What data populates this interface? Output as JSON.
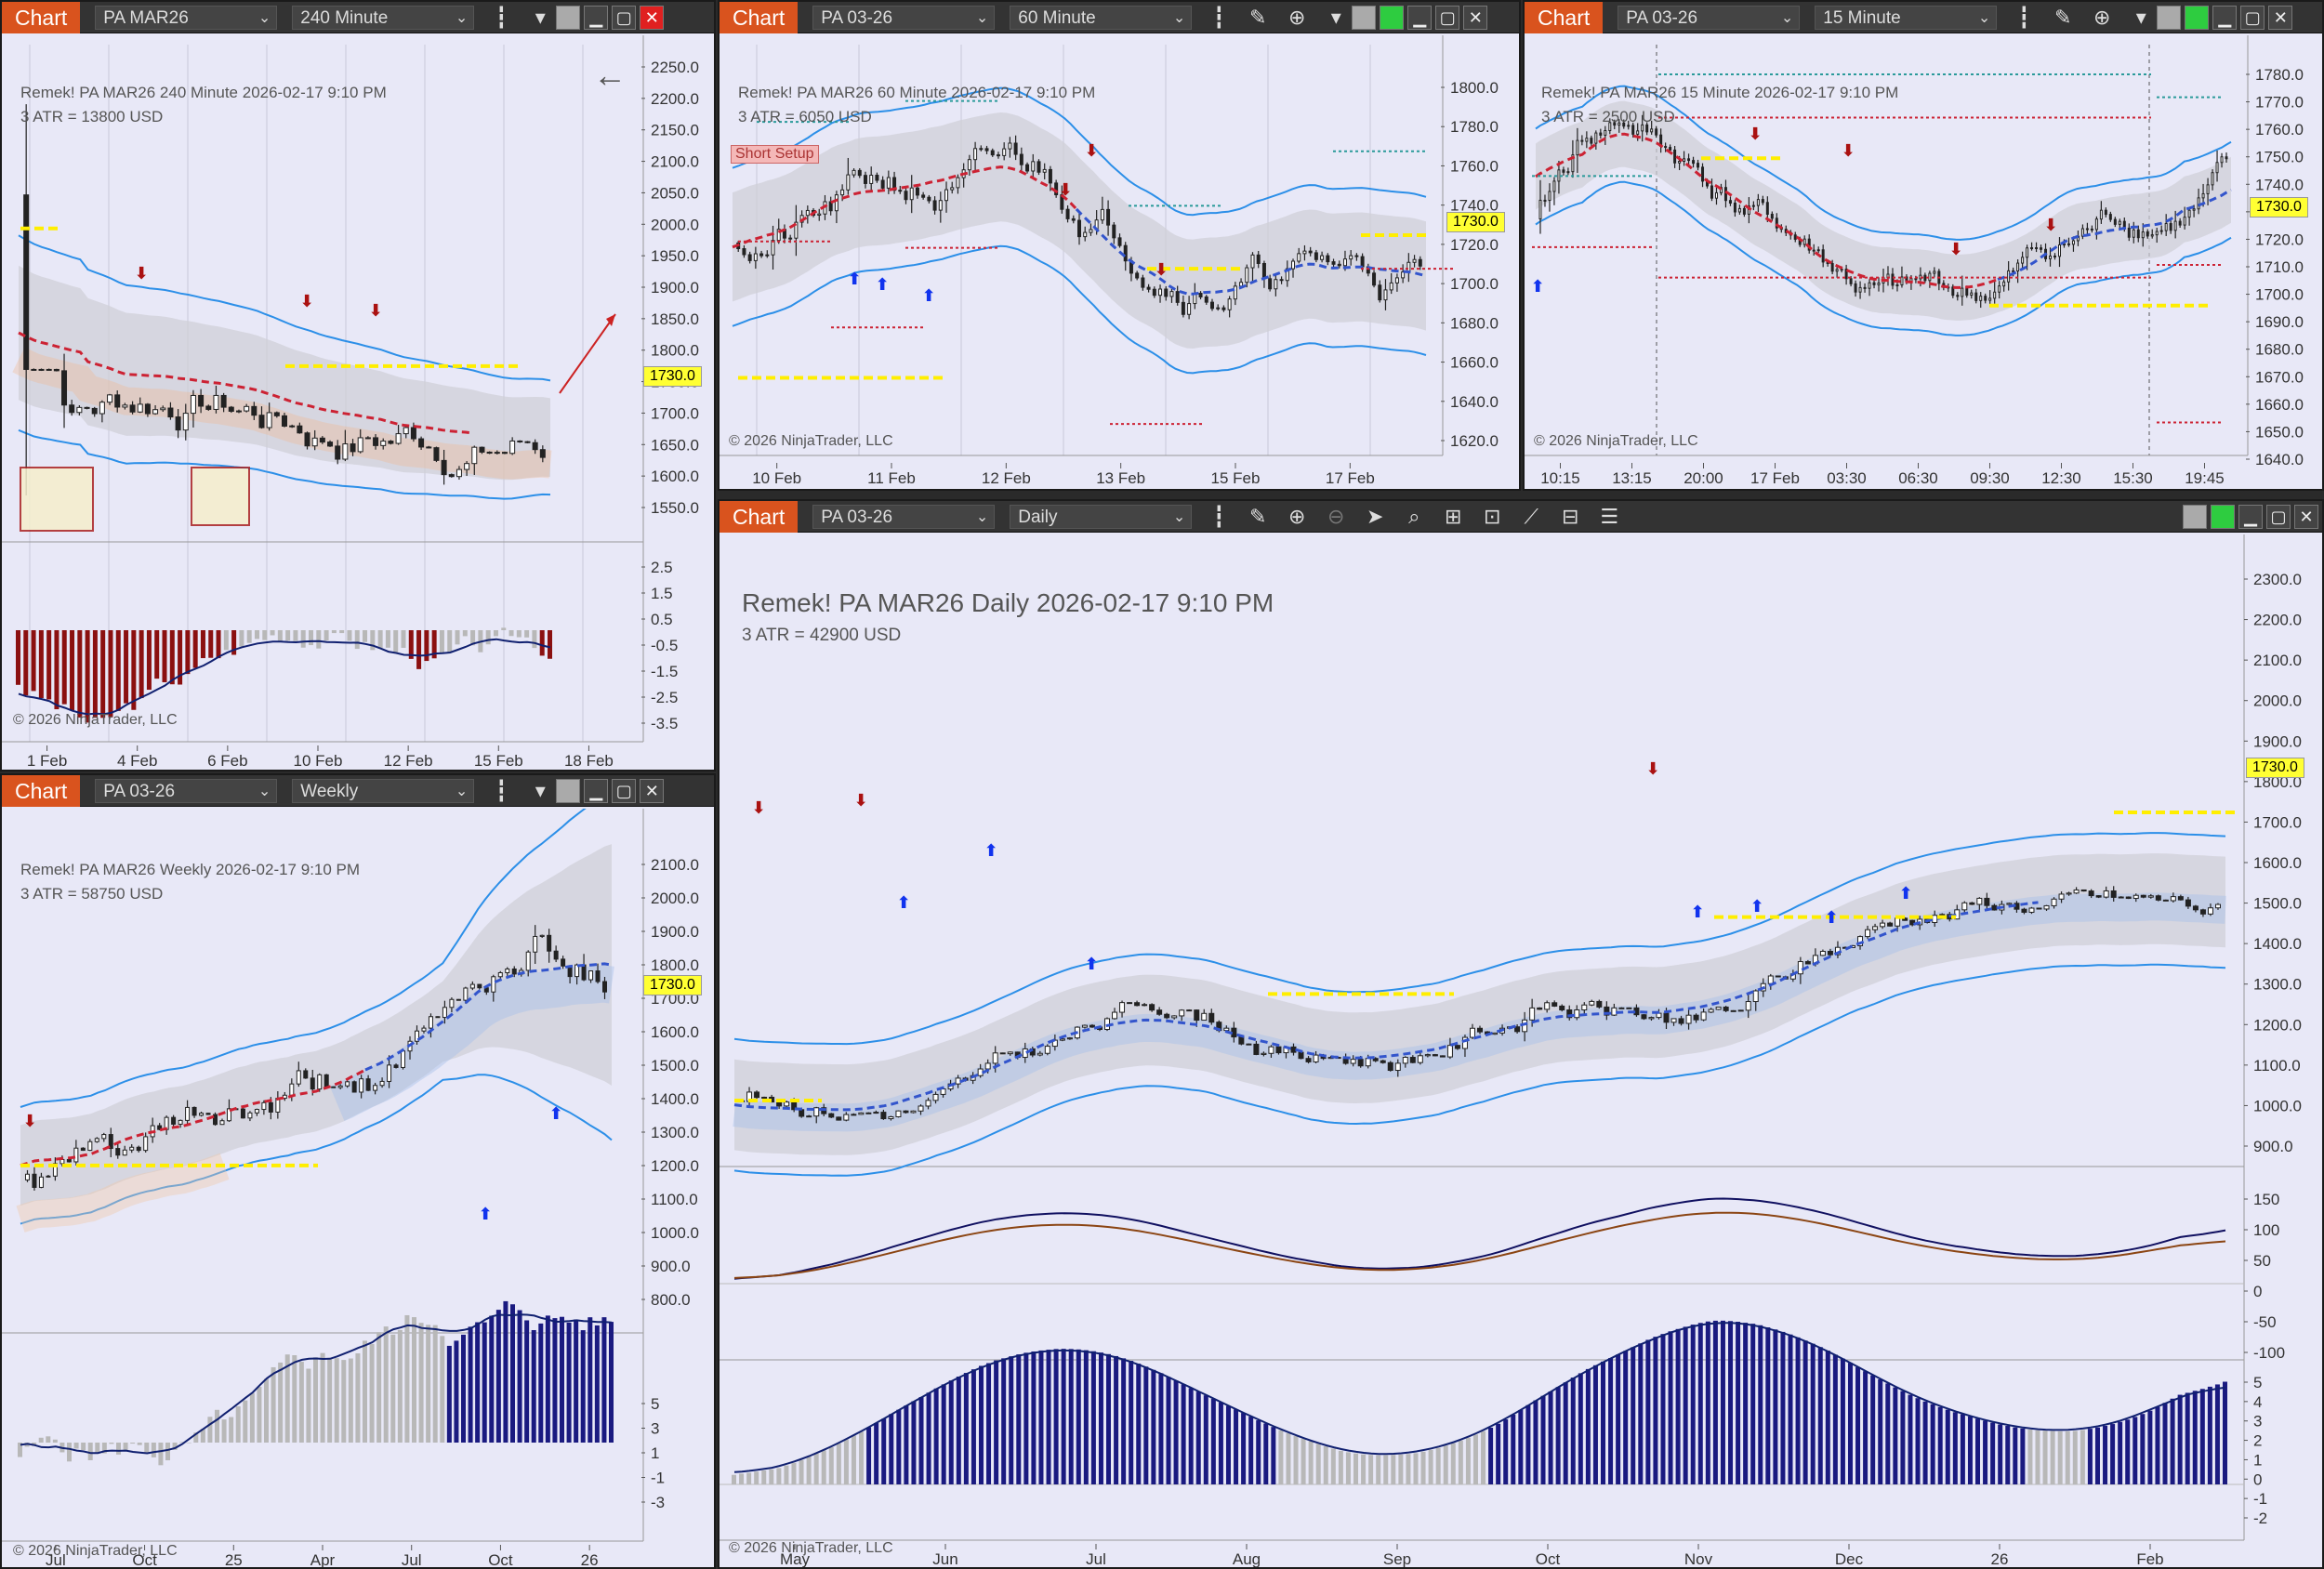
{
  "windows": {
    "w240": {
      "label": "Chart",
      "instrument": "PA MAR26",
      "interval": "240 Minute",
      "title": "Remek!  PA MAR26  240 Minute  2026-02-17 9:10 PM",
      "atr": "3 ATR = 13800 USD",
      "price_tag": "1730.0",
      "copyright": "© 2026 NinjaTrader, LLC",
      "price_ticks": [
        "2250.0",
        "2200.0",
        "2150.0",
        "2100.0",
        "2050.0",
        "2000.0",
        "1950.0",
        "1900.0",
        "1850.0",
        "1800.0",
        "1750.0",
        "1700.0",
        "1650.0",
        "1600.0",
        "1550.0"
      ],
      "osc_ticks": [
        "2.5",
        "1.5",
        "0.5",
        "-0.5",
        "-1.5",
        "-2.5",
        "-3.5"
      ],
      "time_ticks": [
        "1 Feb",
        "4 Feb",
        "6 Feb",
        "10 Feb",
        "12 Feb",
        "15 Feb",
        "18 Feb"
      ]
    },
    "w60": {
      "label": "Chart",
      "instrument": "PA 03-26",
      "interval": "60 Minute",
      "title": "Remek!  PA MAR26  60 Minute  2026-02-17 9:10 PM",
      "atr": "3 ATR = 6050 USD",
      "badge": "Short Setup",
      "price_tag": "1730.0",
      "copyright": "© 2026 NinjaTrader, LLC",
      "price_ticks": [
        "1800.0",
        "1780.0",
        "1760.0",
        "1740.0",
        "1720.0",
        "1700.0",
        "1680.0",
        "1660.0",
        "1640.0",
        "1620.0"
      ],
      "time_ticks": [
        "10 Feb",
        "11 Feb",
        "12 Feb",
        "13 Feb",
        "15 Feb",
        "17 Feb"
      ]
    },
    "w15": {
      "label": "Chart",
      "instrument": "PA 03-26",
      "interval": "15 Minute",
      "title": "Remek!  PA MAR26  15 Minute  2026-02-17 9:10 PM",
      "atr": "3 ATR = 2500 USD",
      "price_tag": "1730.0",
      "copyright": "© 2026 NinjaTrader, LLC",
      "price_ticks": [
        "1780.0",
        "1770.0",
        "1760.0",
        "1750.0",
        "1740.0",
        "1730.0",
        "1720.0",
        "1710.0",
        "1700.0",
        "1690.0",
        "1680.0",
        "1670.0",
        "1660.0",
        "1650.0",
        "1640.0"
      ],
      "time_ticks": [
        "10:15",
        "13:15",
        "20:00",
        "17 Feb",
        "03:30",
        "06:30",
        "09:30",
        "12:30",
        "15:30",
        "19:45"
      ]
    },
    "wweekly": {
      "label": "Chart",
      "instrument": "PA 03-26",
      "interval": "Weekly",
      "title": "Remek!  PA MAR26  Weekly  2026-02-17 9:10 PM",
      "atr": "3 ATR = 58750 USD",
      "price_tag": "1730.0",
      "copyright": "© 2026 NinjaTrader, LLC",
      "price_ticks": [
        "2100.0",
        "2000.0",
        "1900.0",
        "1800.0",
        "1700.0",
        "1600.0",
        "1500.0",
        "1400.0",
        "1300.0",
        "1200.0",
        "1100.0",
        "1000.0",
        "900.0",
        "800.0"
      ],
      "osc_ticks": [
        "5",
        "3",
        "1",
        "-1",
        "-3"
      ],
      "time_ticks": [
        "Jul",
        "Oct",
        "25",
        "Apr",
        "Jul",
        "Oct",
        "26"
      ]
    },
    "wdaily": {
      "label": "Chart",
      "instrument": "PA 03-26",
      "interval": "Daily",
      "title": "Remek!  PA MAR26  Daily  2026-02-17 9:10 PM",
      "atr": "3 ATR = 42900 USD",
      "price_tag": "1730.0",
      "copyright": "© 2026 NinjaTrader, LLC",
      "price_ticks": [
        "2300.0",
        "2200.0",
        "2100.0",
        "2000.0",
        "1900.0",
        "1800.0",
        "1700.0",
        "1600.0",
        "1500.0",
        "1400.0",
        "1300.0",
        "1200.0",
        "1100.0",
        "1000.0",
        "900.0"
      ],
      "macd_ticks": [
        "150",
        "100",
        "50",
        "0",
        "-50",
        "-100"
      ],
      "osc_ticks": [
        "5",
        "4",
        "3",
        "2",
        "1",
        "0",
        "-1",
        "-2"
      ],
      "time_ticks": [
        "May",
        "Jun",
        "Jul",
        "Aug",
        "Sep",
        "Oct",
        "Nov",
        "Dec",
        "26",
        "Feb"
      ]
    }
  },
  "colors": {
    "accent": "#d9531e",
    "band": "#3399ee",
    "mid_red": "#cc2233",
    "mid_blue": "#3355cc",
    "level": "#ffee00",
    "up": "#222222",
    "down_arrow": "#aa1111",
    "up_arrow": "#1133ee"
  }
}
